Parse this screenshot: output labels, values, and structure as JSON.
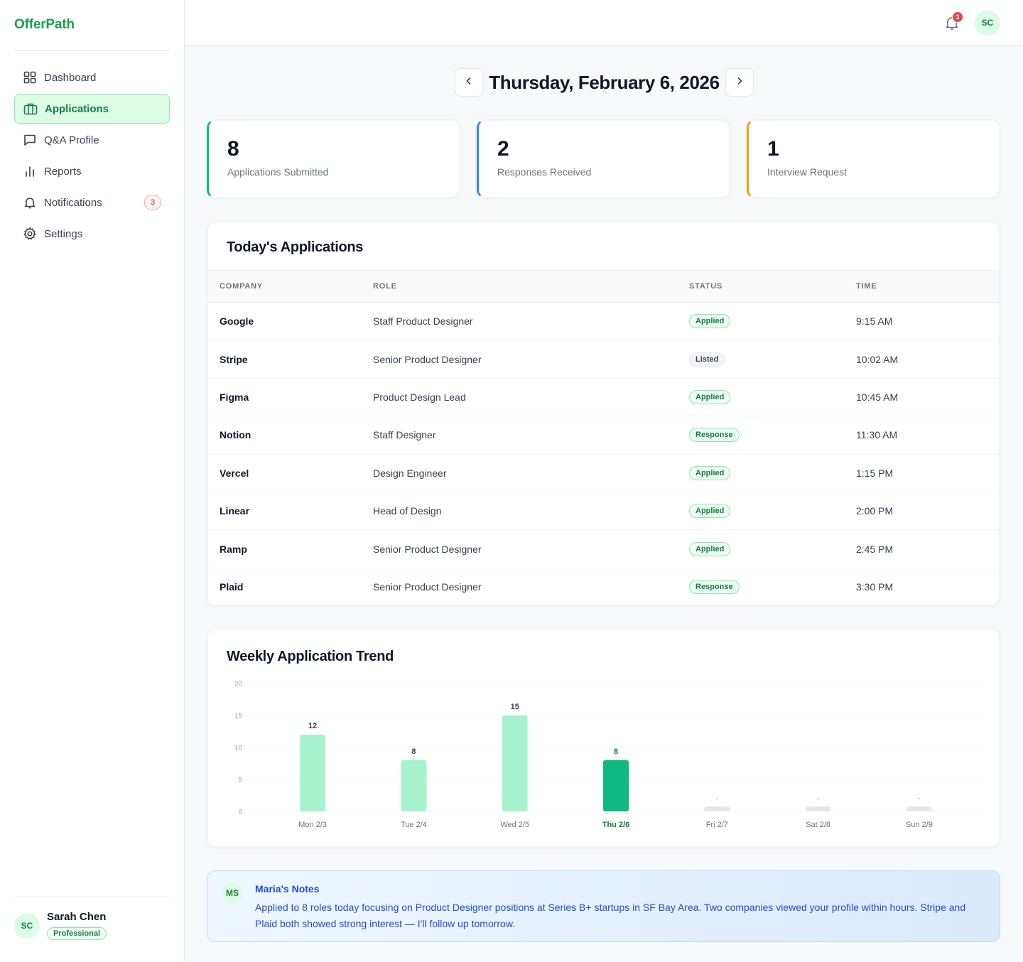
{
  "app": {
    "name": "OfferPath"
  },
  "sidebar": {
    "items": [
      {
        "label": "Dashboard",
        "icon": "dashboard-icon",
        "active": false
      },
      {
        "label": "Applications",
        "icon": "briefcase-icon",
        "active": true
      },
      {
        "label": "Q&A Profile",
        "icon": "chat-icon",
        "active": false
      },
      {
        "label": "Reports",
        "icon": "bar-chart-icon",
        "active": false
      },
      {
        "label": "Notifications",
        "icon": "bell-icon",
        "active": false,
        "badge": "3"
      },
      {
        "label": "Settings",
        "icon": "gear-icon",
        "active": false
      }
    ],
    "user": {
      "initials": "SC",
      "name": "Sarah Chen",
      "plan": "Professional"
    }
  },
  "topbar": {
    "notification_count": "3",
    "avatar_initials": "SC"
  },
  "date_nav": {
    "title": "Thursday, February 6, 2026"
  },
  "stats": [
    {
      "value": "8",
      "label": "Applications Submitted",
      "accent": "#10b981"
    },
    {
      "value": "2",
      "label": "Responses Received",
      "accent": "#3b82f6"
    },
    {
      "value": "1",
      "label": "Interview Request",
      "accent": "#f59e0b"
    }
  ],
  "applications": {
    "title": "Today's Applications",
    "columns": [
      "COMPANY",
      "ROLE",
      "STATUS",
      "TIME"
    ],
    "rows": [
      {
        "company": "Google",
        "role": "Staff Product Designer",
        "status": "Applied",
        "time": "9:15 AM"
      },
      {
        "company": "Stripe",
        "role": "Senior Product Designer",
        "status": "Listed",
        "time": "10:02 AM"
      },
      {
        "company": "Figma",
        "role": "Product Design Lead",
        "status": "Applied",
        "time": "10:45 AM"
      },
      {
        "company": "Notion",
        "role": "Staff Designer",
        "status": "Response",
        "time": "11:30 AM"
      },
      {
        "company": "Vercel",
        "role": "Design Engineer",
        "status": "Applied",
        "time": "1:15 PM"
      },
      {
        "company": "Linear",
        "role": "Head of Design",
        "status": "Applied",
        "time": "2:00 PM"
      },
      {
        "company": "Ramp",
        "role": "Senior Product Designer",
        "status": "Applied",
        "time": "2:45 PM"
      },
      {
        "company": "Plaid",
        "role": "Senior Product Designer",
        "status": "Response",
        "time": "3:30 PM"
      }
    ]
  },
  "trend": {
    "title": "Weekly Application Trend"
  },
  "chart_data": {
    "type": "bar",
    "title": "Weekly Application Trend",
    "categories": [
      "Mon 2/3",
      "Tue 2/4",
      "Wed 2/5",
      "Thu 2/6",
      "Fri 2/7",
      "Sat 2/8",
      "Sun 2/9"
    ],
    "values": [
      12,
      8,
      15,
      8,
      null,
      null,
      null
    ],
    "value_labels": [
      "12",
      "8",
      "15",
      "8",
      "-",
      "-",
      "-"
    ],
    "highlight_index": 3,
    "ylim": [
      0,
      20
    ],
    "yticks": [
      0,
      5,
      10,
      15,
      20
    ],
    "grid": true,
    "colors": {
      "bar": "#a7f3d0",
      "highlight": "#10b981",
      "empty": "#e5e7eb"
    }
  },
  "notes": {
    "initials": "MS",
    "title": "Maria's Notes",
    "body": "Applied to 8 roles today focusing on Product Designer positions at Series B+ startups in SF Bay Area. Two companies viewed your profile within hours. Stripe and Plaid both showed strong interest — I'll follow up tomorrow."
  }
}
